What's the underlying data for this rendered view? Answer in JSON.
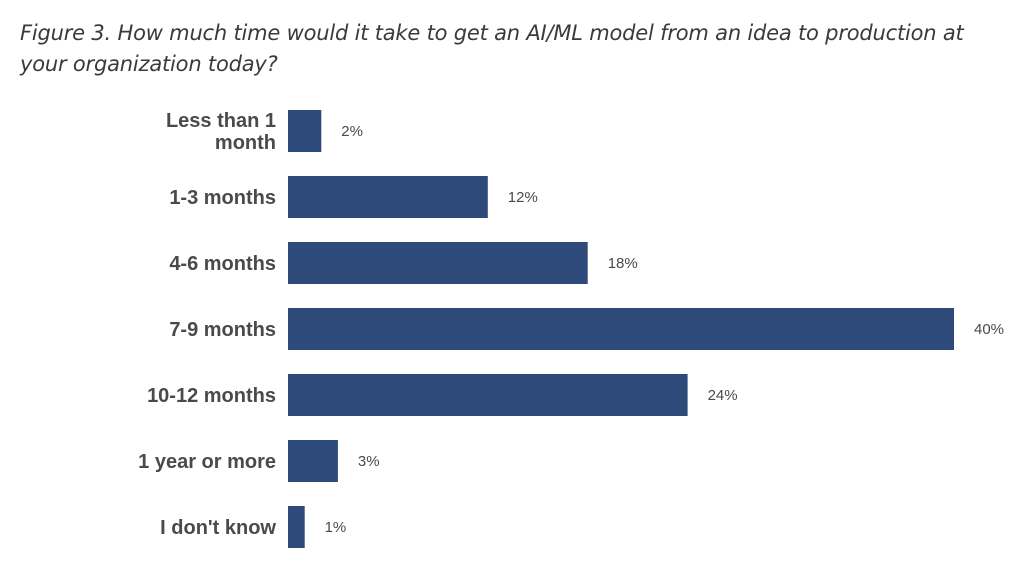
{
  "figure": {
    "title": "Figure 3. How much time would it take to get an AI/ML model from an idea to production at your organization today?"
  },
  "colors": {
    "bar": "#2e4a7a",
    "text": "#4a4a4a",
    "title": "#3a3a3a"
  },
  "chart_data": {
    "type": "bar",
    "orientation": "horizontal",
    "title": "",
    "xlabel": "",
    "ylabel": "",
    "xlim": [
      0,
      40
    ],
    "grid": false,
    "categories": [
      "Less than 1 month",
      "1-3 months",
      "4-6 months",
      "7-9 months",
      "10-12 months",
      "1 year or more",
      "I don't know"
    ],
    "category_lines": [
      [
        "Less than 1",
        "month"
      ],
      [
        "1-3 months"
      ],
      [
        "4-6 months"
      ],
      [
        "7-9 months"
      ],
      [
        "10-12 months"
      ],
      [
        "1 year or more"
      ],
      [
        "I don't know"
      ]
    ],
    "values": [
      2,
      12,
      18,
      40,
      24,
      3,
      1
    ],
    "value_labels": [
      "2%",
      "12%",
      "18%",
      "40%",
      "24%",
      "3%",
      "1%"
    ]
  }
}
